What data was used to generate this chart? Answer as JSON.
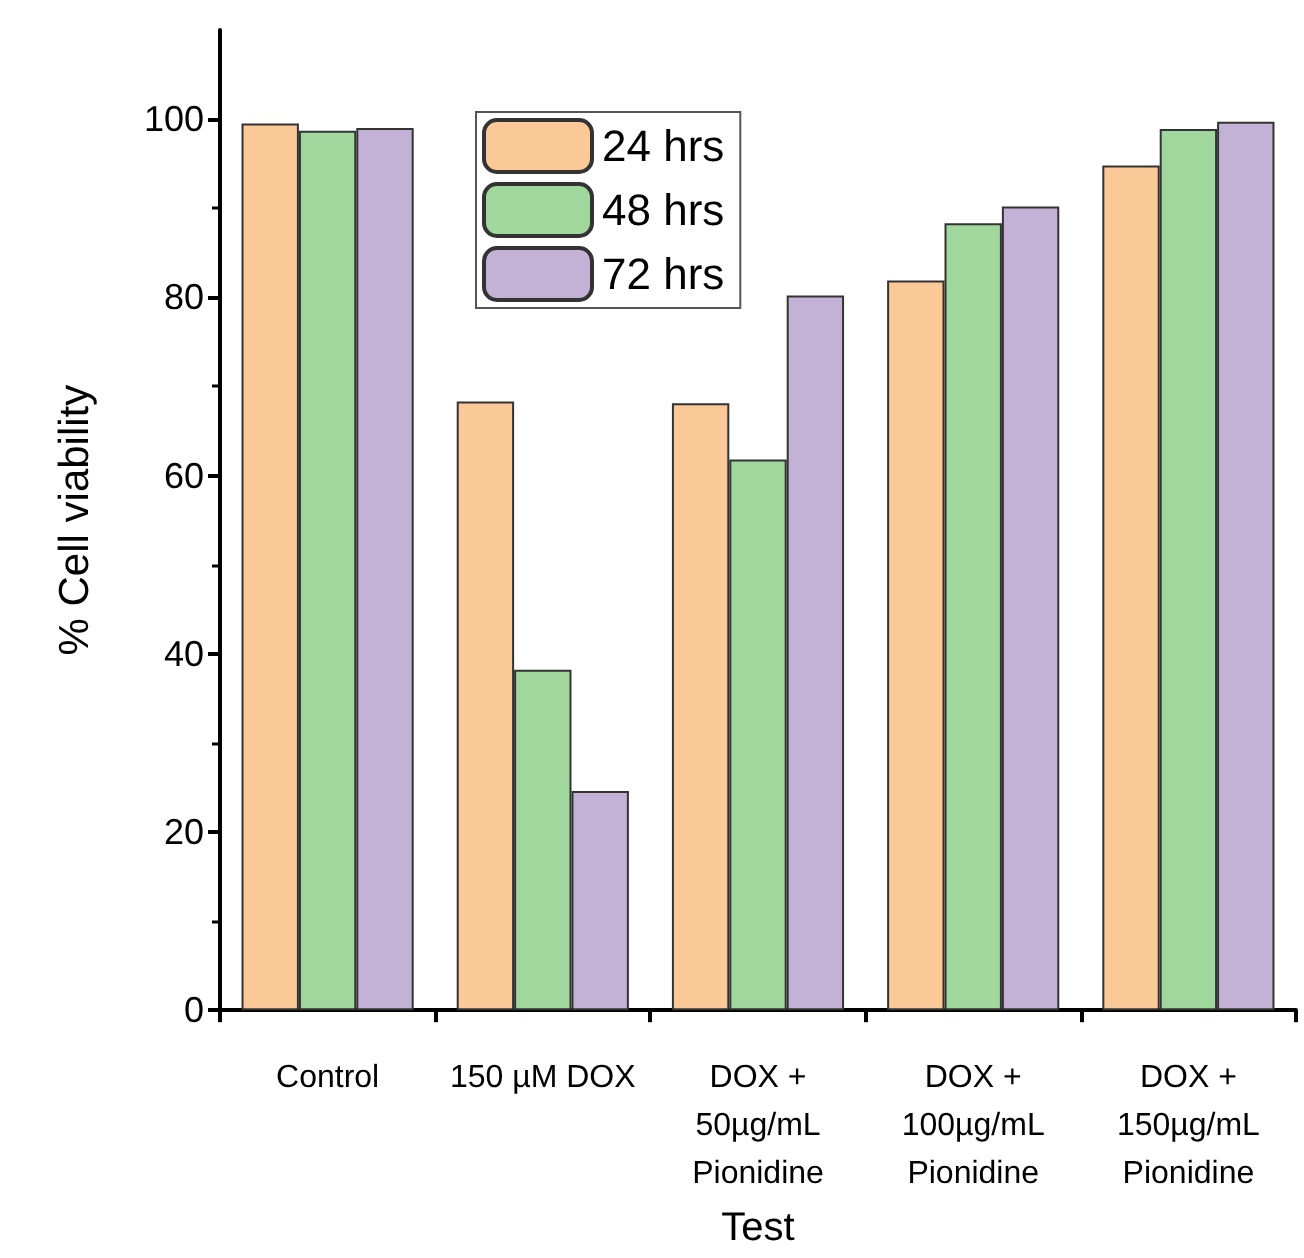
{
  "chart_data": {
    "type": "bar",
    "xlabel": "Test",
    "ylabel": "% Cell viability",
    "categories": [
      "Control",
      "150 µM DOX",
      "DOX +\n50µg/mL\nPionidine",
      "DOX +\n100µg/mL\nPionidine",
      "DOX +\n150µg/mL\nPionidine"
    ],
    "series": [
      {
        "name": "24 hrs",
        "color": "#fbc898",
        "values": [
          99.5,
          68.3,
          68.1,
          81.9,
          94.8
        ]
      },
      {
        "name": "48 hrs",
        "color": "#9fd79d",
        "values": [
          98.7,
          38.2,
          61.8,
          88.3,
          98.9
        ]
      },
      {
        "name": "72 hrs",
        "color": "#c3b1d6",
        "values": [
          99.0,
          24.6,
          80.2,
          90.2,
          99.7
        ]
      }
    ],
    "ylim": [
      0,
      110
    ],
    "yticks": [
      0,
      20,
      40,
      60,
      80,
      100
    ],
    "grid": false,
    "legend": "top"
  }
}
